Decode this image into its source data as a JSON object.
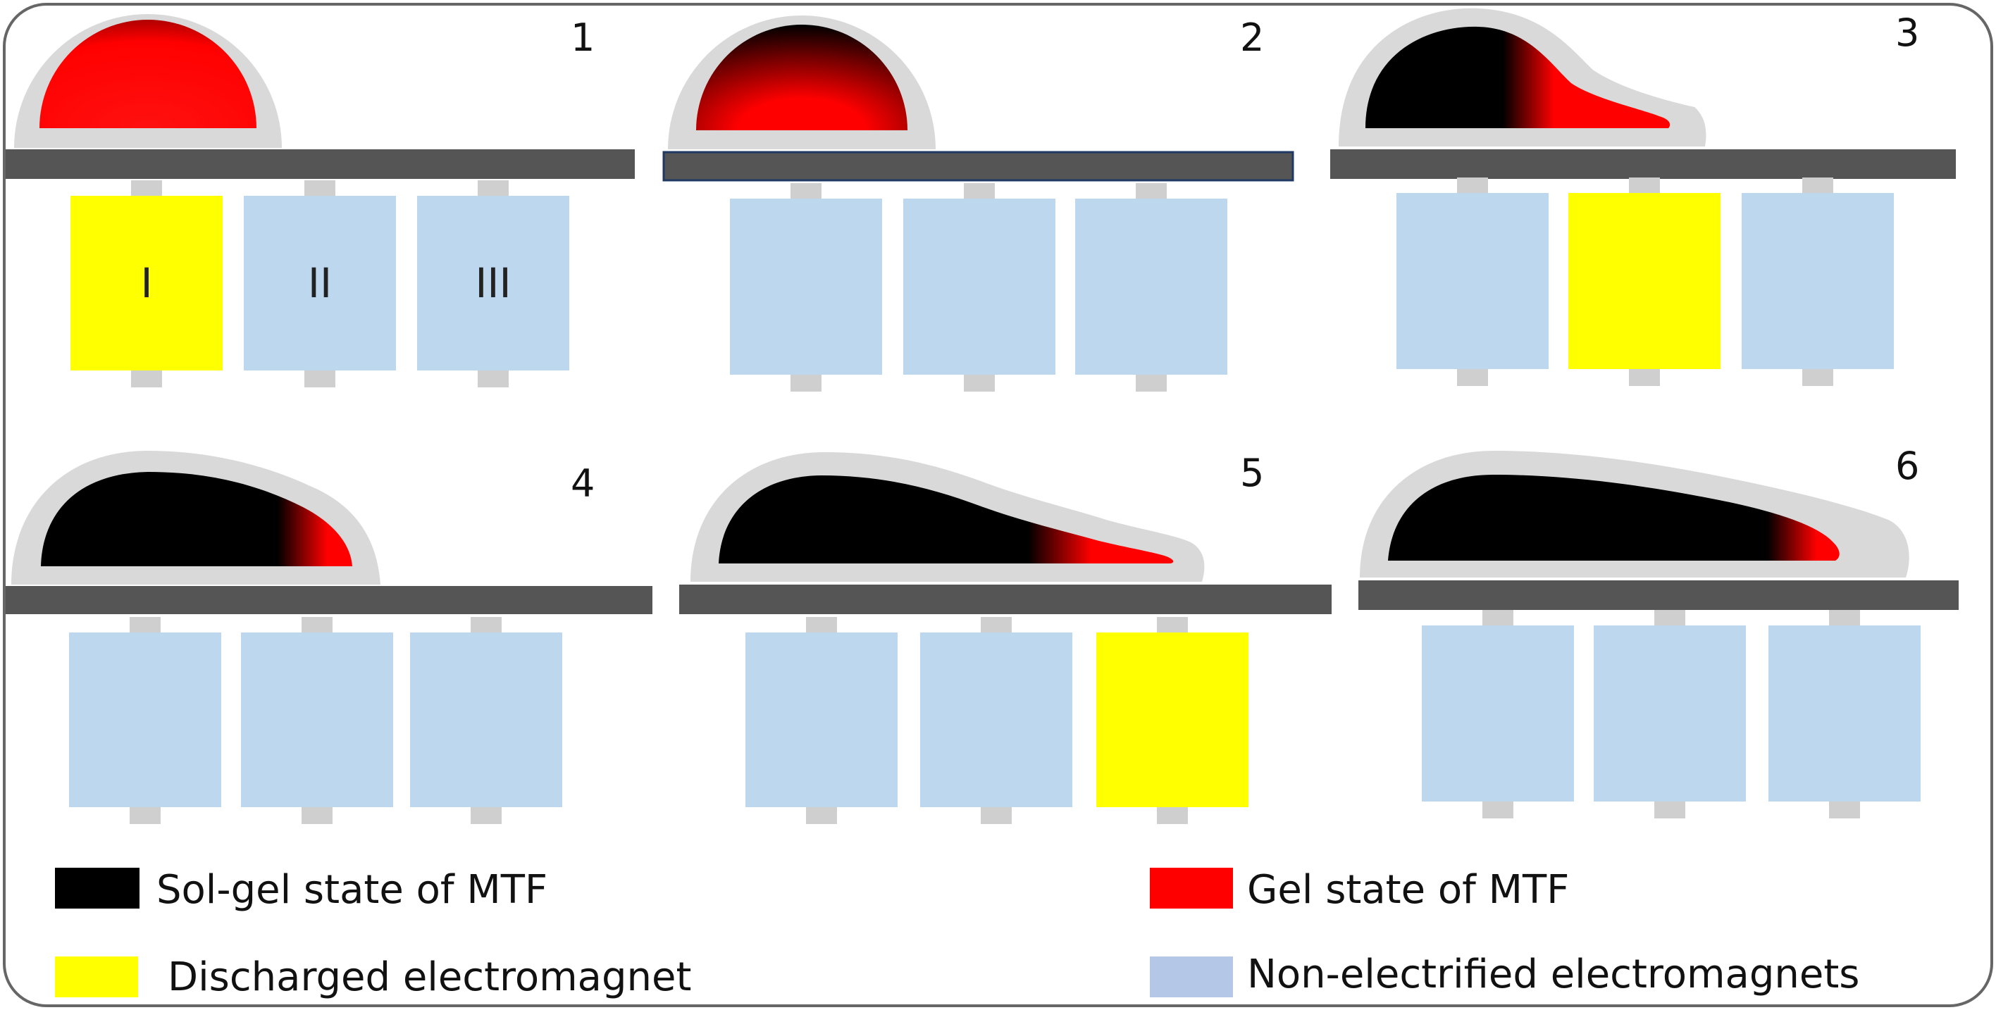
{
  "colors": {
    "sol_gel": "#000000",
    "gel": "#ff0000",
    "discharged": "#ffff00",
    "non_electrified": "#bdd7ee",
    "legend_non_electrified": "#b4c7e7",
    "substrate": "#555555",
    "shell": "#d9d9d9",
    "stub": "#cfcfcf",
    "frame": "#666666"
  },
  "panels": [
    {
      "number": "1",
      "electromagnets": [
        {
          "label": "I",
          "state": "discharged"
        },
        {
          "label": "II",
          "state": "non_electrified"
        },
        {
          "label": "III",
          "state": "non_electrified"
        }
      ]
    },
    {
      "number": "2",
      "electromagnets": [
        {
          "label": "",
          "state": "non_electrified"
        },
        {
          "label": "",
          "state": "non_electrified"
        },
        {
          "label": "",
          "state": "non_electrified"
        }
      ]
    },
    {
      "number": "3",
      "electromagnets": [
        {
          "label": "",
          "state": "non_electrified"
        },
        {
          "label": "",
          "state": "discharged"
        },
        {
          "label": "",
          "state": "non_electrified"
        }
      ]
    },
    {
      "number": "4",
      "electromagnets": [
        {
          "label": "",
          "state": "non_electrified"
        },
        {
          "label": "",
          "state": "non_electrified"
        },
        {
          "label": "",
          "state": "non_electrified"
        }
      ]
    },
    {
      "number": "5",
      "electromagnets": [
        {
          "label": "",
          "state": "non_electrified"
        },
        {
          "label": "",
          "state": "non_electrified"
        },
        {
          "label": "",
          "state": "discharged"
        }
      ]
    },
    {
      "number": "6",
      "electromagnets": [
        {
          "label": "",
          "state": "non_electrified"
        },
        {
          "label": "",
          "state": "non_electrified"
        },
        {
          "label": "",
          "state": "non_electrified"
        }
      ]
    }
  ],
  "legend": {
    "sol_gel": "Sol-gel state of MTF",
    "gel": "Gel state of MTF",
    "discharged": " Discharged electromagnet",
    "non_electrified": "Non-electrified electromagnets"
  }
}
